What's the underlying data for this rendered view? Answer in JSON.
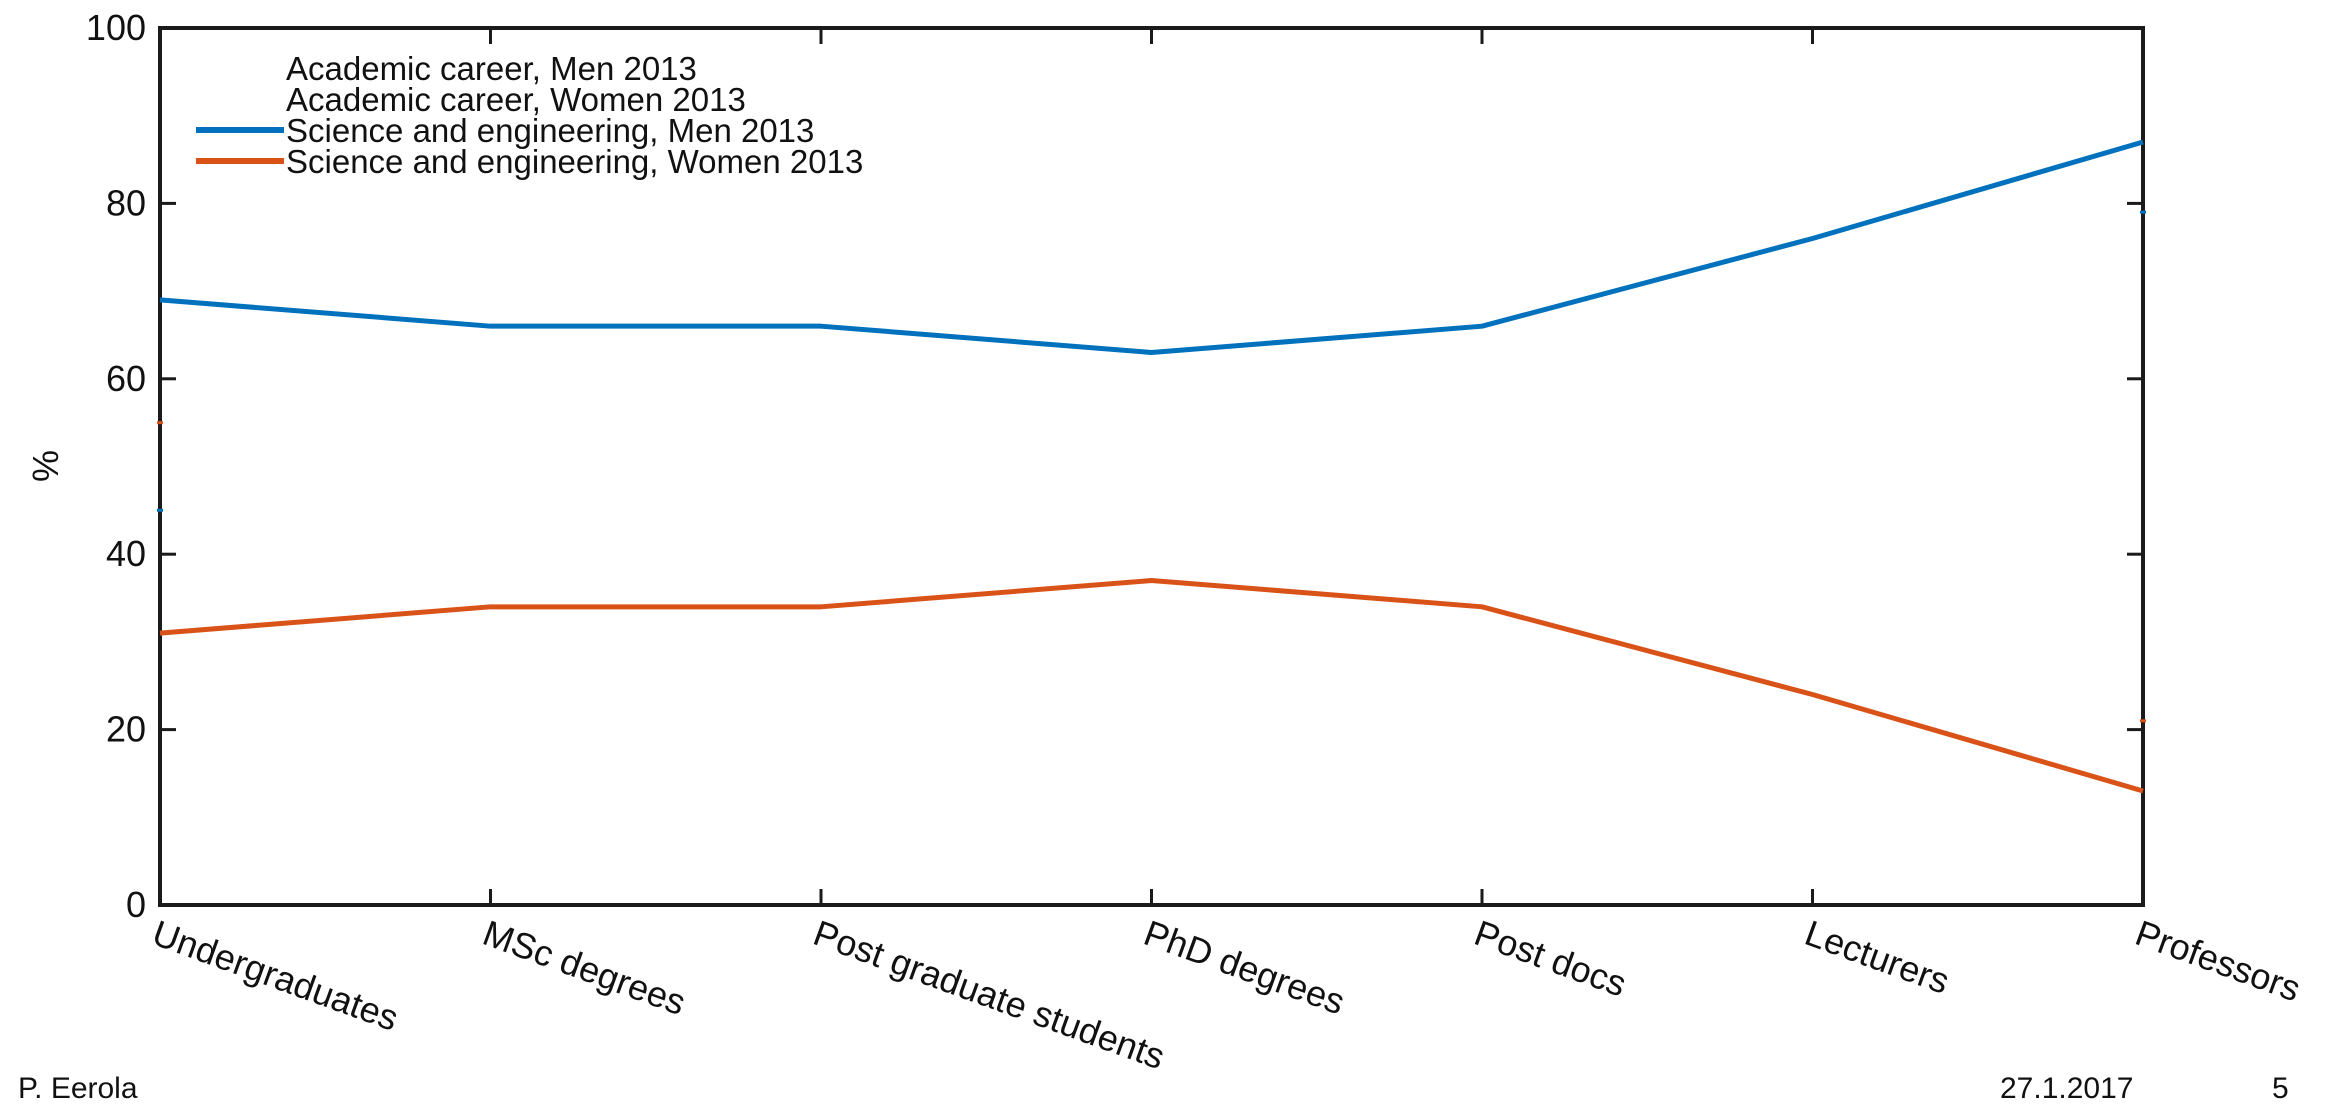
{
  "chart_data": {
    "type": "line",
    "categories": [
      "Undergraduates",
      "MSc degrees",
      "Post graduate students",
      "PhD degrees",
      "Post docs",
      "Lecturers",
      "Professors"
    ],
    "series": [
      {
        "name": "Academic career, Men 2013",
        "values": [
          45,
          null,
          null,
          null,
          null,
          null,
          79
        ],
        "color": "#0072BD",
        "visible_line": false
      },
      {
        "name": "Academic career, Women 2013",
        "values": [
          55,
          null,
          null,
          null,
          null,
          null,
          21
        ],
        "color": "#D95319",
        "visible_line": false
      },
      {
        "name": "Science and engineering, Men 2013",
        "values": [
          69,
          66,
          66,
          63,
          66,
          76,
          87
        ],
        "color": "#0072BD",
        "visible_line": true
      },
      {
        "name": "Science and engineering, Women 2013",
        "values": [
          31,
          34,
          34,
          37,
          34,
          24,
          13
        ],
        "color": "#D95319",
        "visible_line": true
      }
    ],
    "title": "",
    "xlabel": "",
    "ylabel": "%",
    "ylim": [
      0,
      100
    ],
    "yticks": [
      0,
      20,
      40,
      60,
      80,
      100
    ],
    "grid": false,
    "legend_position": "top-left"
  },
  "footer": {
    "author": "P. Eerola",
    "date": "27.1.2017",
    "page": "5"
  }
}
